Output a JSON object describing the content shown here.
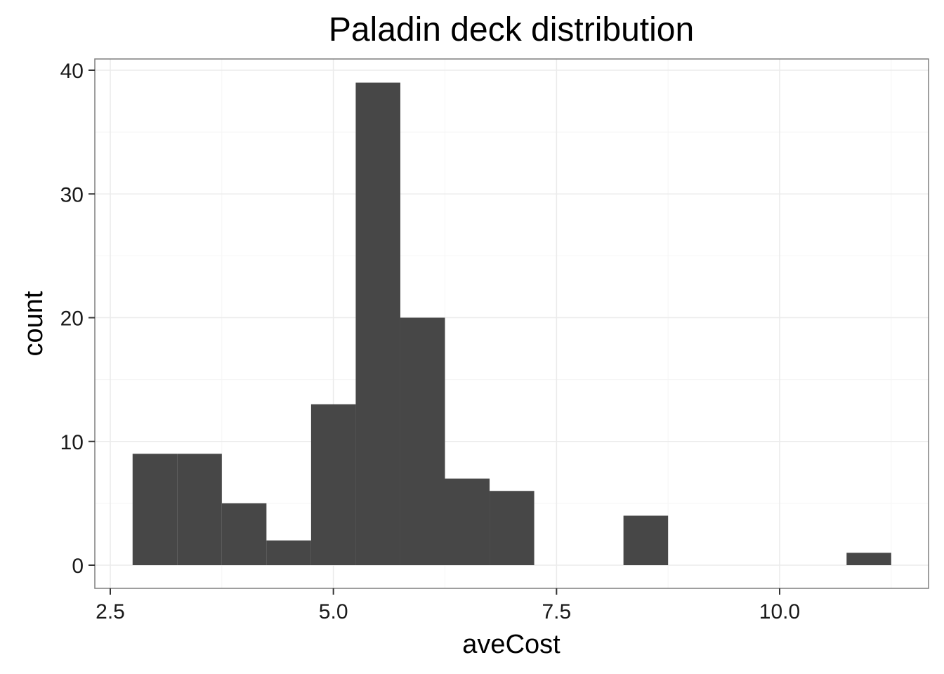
{
  "chart_data": {
    "type": "histogram",
    "title": "Paladin deck distribution",
    "xlabel": "aveCost",
    "ylabel": "count",
    "xlim": [
      2.5,
      11.5
    ],
    "ylim": [
      0,
      40
    ],
    "x_ticks": [
      2.5,
      5.0,
      7.5,
      10.0
    ],
    "x_tick_labels": [
      "2.5",
      "5.0",
      "7.5",
      "10.0"
    ],
    "y_ticks": [
      0,
      10,
      20,
      30,
      40
    ],
    "y_tick_labels": [
      "0",
      "10",
      "20",
      "30",
      "40"
    ],
    "bin_width": 0.5,
    "bars": [
      {
        "x0": 2.75,
        "x1": 3.25,
        "count": 9
      },
      {
        "x0": 3.25,
        "x1": 3.75,
        "count": 9
      },
      {
        "x0": 3.75,
        "x1": 4.25,
        "count": 5
      },
      {
        "x0": 4.25,
        "x1": 4.75,
        "count": 2
      },
      {
        "x0": 4.75,
        "x1": 5.25,
        "count": 13
      },
      {
        "x0": 5.25,
        "x1": 5.75,
        "count": 39
      },
      {
        "x0": 5.75,
        "x1": 6.25,
        "count": 20
      },
      {
        "x0": 6.25,
        "x1": 6.75,
        "count": 7
      },
      {
        "x0": 6.75,
        "x1": 7.25,
        "count": 6
      },
      {
        "x0": 7.25,
        "x1": 7.75,
        "count": 0
      },
      {
        "x0": 7.75,
        "x1": 8.25,
        "count": 0
      },
      {
        "x0": 8.25,
        "x1": 8.75,
        "count": 4
      },
      {
        "x0": 8.75,
        "x1": 9.25,
        "count": 0
      },
      {
        "x0": 9.25,
        "x1": 9.75,
        "count": 0
      },
      {
        "x0": 9.75,
        "x1": 10.25,
        "count": 0
      },
      {
        "x0": 10.25,
        "x1": 10.75,
        "count": 0
      },
      {
        "x0": 10.75,
        "x1": 11.25,
        "count": 1
      }
    ],
    "grid": true,
    "bar_color": "#474747",
    "background": "#ffffff"
  }
}
